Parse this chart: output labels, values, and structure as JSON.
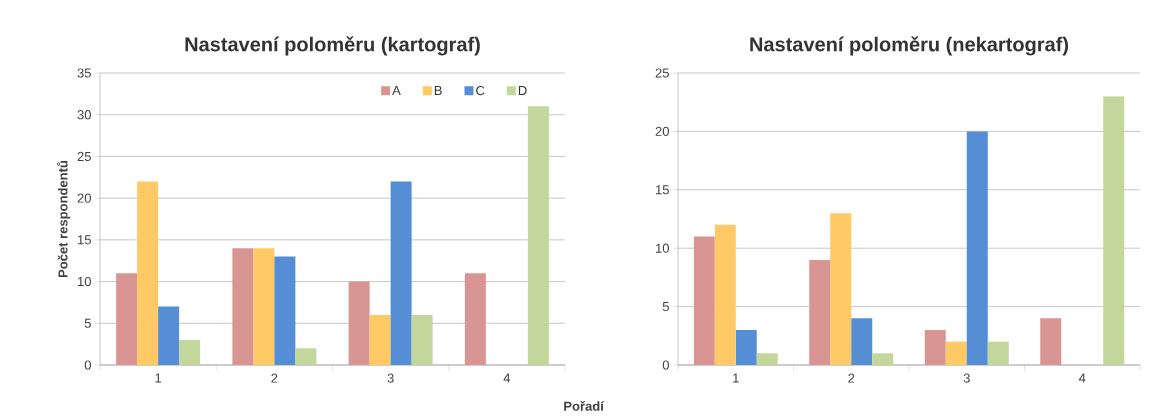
{
  "chart_data": [
    {
      "type": "bar",
      "title": "Nastavení poloměru (kartograf)",
      "xlabel": "Pořadí",
      "ylabel": "Počet respondentů",
      "categories": [
        "1",
        "2",
        "3",
        "4"
      ],
      "ylim": [
        0,
        35
      ],
      "yticks": [
        0,
        5,
        10,
        15,
        20,
        25,
        30,
        35
      ],
      "grid": "y",
      "legend": "top right",
      "series": [
        {
          "name": "A",
          "color": "#d99594",
          "values": [
            11,
            14,
            10,
            11
          ]
        },
        {
          "name": "B",
          "color": "#ffc965",
          "values": [
            22,
            14,
            6,
            0
          ]
        },
        {
          "name": "C",
          "color": "#558ed5",
          "values": [
            7,
            13,
            22,
            0
          ]
        },
        {
          "name": "D",
          "color": "#c3d69b",
          "values": [
            3,
            2,
            6,
            31
          ]
        }
      ]
    },
    {
      "type": "bar",
      "title": "Nastavení poloměru (nekartograf)",
      "categories": [
        "1",
        "2",
        "3",
        "4"
      ],
      "ylim": [
        0,
        25
      ],
      "yticks": [
        0,
        5,
        10,
        15,
        20,
        25
      ],
      "grid": "y",
      "series": [
        {
          "color": "#d99594",
          "values": [
            11,
            9,
            3,
            4
          ]
        },
        {
          "color": "#ffc965",
          "values": [
            12,
            13,
            2,
            0
          ]
        },
        {
          "color": "#558ed5",
          "values": [
            3,
            4,
            20,
            0
          ]
        },
        {
          "color": "#c3d69b",
          "values": [
            1,
            1,
            2,
            23
          ]
        }
      ]
    }
  ]
}
